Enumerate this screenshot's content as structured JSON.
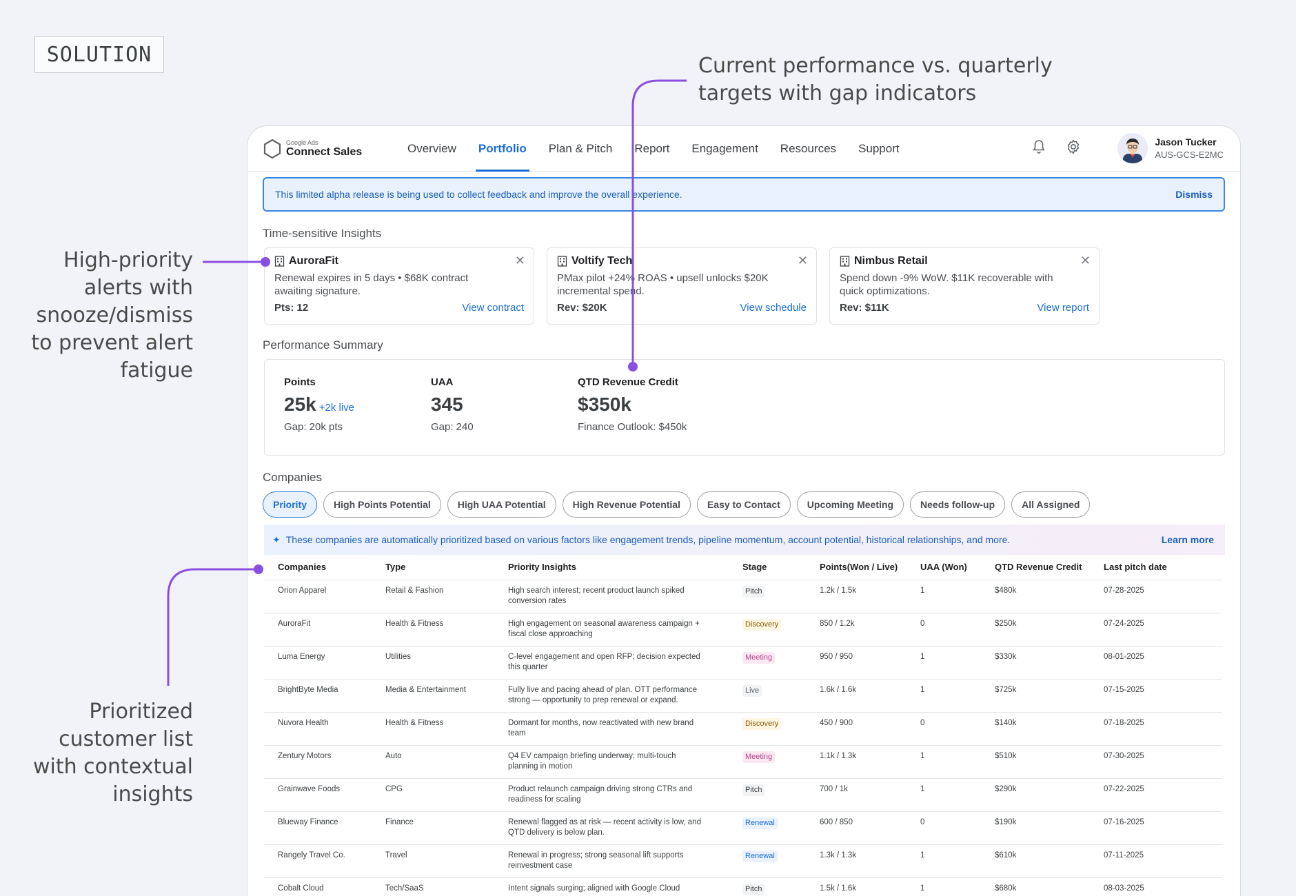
{
  "tag": "SOLUTION",
  "annotations": {
    "performance": "Current performance vs. quarterly targets with gap indicators",
    "alerts": "High-priority alerts with snooze/dismiss to prevent alert fatigue",
    "list": "Prioritized customer list with contextual insights",
    "accent_color": "#8a4fe0"
  },
  "app": {
    "logo_small": "Google Ads",
    "logo_name": "Connect Sales",
    "nav": [
      "Overview",
      "Portfolio",
      "Plan & Pitch",
      "Report",
      "Engagement",
      "Resources",
      "Support"
    ],
    "active_nav": "Portfolio",
    "user_name": "Jason Tucker",
    "user_id": "AUS-GCS-E2MC"
  },
  "banner": {
    "text": "This limited alpha release is being used to collect feedback and improve the overall experience.",
    "dismiss": "Dismiss"
  },
  "insights": {
    "title": "Time-sensitive Insights",
    "alerts": [
      {
        "company": "AuroraFit",
        "body": "Renewal expires in 5 days • $68K contract awaiting signature.",
        "meta": "Pts: 12",
        "link": "View contract"
      },
      {
        "company": "Voltify Tech",
        "body": "PMax pilot +24% ROAS • upsell unlocks $20K incremental spend.",
        "meta": "Rev: $20K",
        "link": "View schedule"
      },
      {
        "company": "Nimbus Retail",
        "body": "Spend down -9% WoW. $11K recoverable with quick optimizations.",
        "meta": "Rev: $11K",
        "link": "View report"
      }
    ]
  },
  "performance": {
    "title": "Performance Summary",
    "points": {
      "label": "Points",
      "value": "25k",
      "live": "+2k live",
      "sub": "Gap: 20k pts"
    },
    "uaa": {
      "label": "UAA",
      "value": "345",
      "sub": "Gap: 240"
    },
    "revenue": {
      "label": "QTD Revenue Credit",
      "value": "$350k",
      "sub": "Finance Outlook: $450k"
    }
  },
  "companies": {
    "title": "Companies",
    "chips": [
      "Priority",
      "High Points Potential",
      "High UAA Potential",
      "High Revenue Potential",
      "Easy to Contact",
      "Upcoming Meeting",
      "Needs follow-up",
      "All Assigned"
    ],
    "active_chip": "Priority",
    "info": "These companies are automatically prioritized based on various factors like engagement trends, pipeline momentum, account potential, historical relationships, and more.",
    "learn_more": "Learn more",
    "columns": [
      "Companies",
      "Type",
      "Priority Insights",
      "Stage",
      "Points(Won / Live)",
      "UAA (Won)",
      "QTD Revenue Credit",
      "Last pitch date"
    ],
    "rows": [
      {
        "company": "Orion Apparel",
        "type": "Retail & Fashion",
        "insight": "High search interest; recent product launch spiked conversion rates",
        "stage": "Pitch",
        "points": "1.2k / 1.5k",
        "uaa": "1",
        "revenue": "$480k",
        "date": "07-28-2025"
      },
      {
        "company": "AuroraFit",
        "type": "Health & Fitness",
        "insight": "High engagement on seasonal awareness campaign + fiscal close approaching",
        "stage": "Discovery",
        "points": "850 / 1.2k",
        "uaa": "0",
        "revenue": "$250k",
        "date": "07-24-2025"
      },
      {
        "company": "Luma Energy",
        "type": "Utilities",
        "insight": "C-level engagement and open RFP; decision expected this quarter",
        "stage": "Meeting",
        "points": "950 / 950",
        "uaa": "1",
        "revenue": "$330k",
        "date": "08-01-2025"
      },
      {
        "company": "BrightByte Media",
        "type": "Media & Entertainment",
        "insight": "Fully live and pacing ahead of plan. OTT performance strong — opportunity to prep renewal or expand.",
        "stage": "Live",
        "points": "1.6k / 1.6k",
        "uaa": "1",
        "revenue": "$725k",
        "date": "07-15-2025"
      },
      {
        "company": "Nuvora Health",
        "type": "Health & Fitness",
        "insight": "Dormant for months, now reactivated with new brand team",
        "stage": "Discovery",
        "points": "450 / 900",
        "uaa": "0",
        "revenue": "$140k",
        "date": "07-18-2025"
      },
      {
        "company": "Zentury Motors",
        "type": "Auto",
        "insight": "Q4 EV campaign briefing underway; multi-touch planning in motion",
        "stage": "Meeting",
        "points": "1.1k / 1.3k",
        "uaa": "1",
        "revenue": "$510k",
        "date": "07-30-2025"
      },
      {
        "company": "Grainwave Foods",
        "type": "CPG",
        "insight": "Product relaunch campaign driving strong CTRs and readiness for scaling",
        "stage": "Pitch",
        "points": "700 / 1k",
        "uaa": "1",
        "revenue": "$290k",
        "date": "07-22-2025"
      },
      {
        "company": "Blueway Finance",
        "type": "Finance",
        "insight": "Renewal flagged as at risk — recent activity is low, and QTD delivery is below plan.",
        "stage": "Renewal",
        "points": "600 / 850",
        "uaa": "0",
        "revenue": "$190k",
        "date": "07-16-2025"
      },
      {
        "company": "Rangely Travel Co.",
        "type": "Travel",
        "insight": "Renewal in progress; strong seasonal lift supports reinvestment case",
        "stage": "Renewal",
        "points": "1.3k / 1.3k",
        "uaa": "1",
        "revenue": "$610k",
        "date": "07-11-2025"
      },
      {
        "company": "Cobalt Cloud",
        "type": "Tech/SaaS",
        "insight": "Intent signals surging; aligned with Google Cloud",
        "stage": "Pitch",
        "points": "1.5k / 1.6k",
        "uaa": "1",
        "revenue": "$680k",
        "date": "08-03-2025"
      }
    ]
  }
}
